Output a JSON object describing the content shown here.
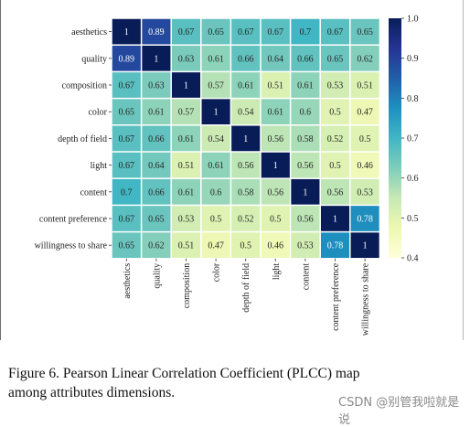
{
  "chart_data": {
    "type": "heatmap",
    "rows": [
      "aesthetics",
      "quality",
      "composition",
      "color",
      "depth of field",
      "light",
      "content",
      "content preference",
      "willingness to share"
    ],
    "columns": [
      "aesthetics",
      "quality",
      "composition",
      "color",
      "depth of field",
      "light",
      "content",
      "content preference",
      "willingness to share"
    ],
    "values": [
      [
        1,
        0.89,
        0.67,
        0.65,
        0.67,
        0.67,
        0.7,
        0.67,
        0.65
      ],
      [
        0.89,
        1,
        0.63,
        0.61,
        0.66,
        0.64,
        0.66,
        0.65,
        0.62
      ],
      [
        0.67,
        0.63,
        1,
        0.57,
        0.61,
        0.51,
        0.61,
        0.53,
        0.51
      ],
      [
        0.65,
        0.61,
        0.57,
        1,
        0.54,
        0.61,
        0.6,
        0.5,
        0.47
      ],
      [
        0.67,
        0.66,
        0.61,
        0.54,
        1,
        0.56,
        0.58,
        0.52,
        0.5
      ],
      [
        0.67,
        0.64,
        0.51,
        0.61,
        0.56,
        1,
        0.56,
        0.5,
        0.46
      ],
      [
        0.7,
        0.66,
        0.61,
        0.6,
        0.58,
        0.56,
        1,
        0.56,
        0.53
      ],
      [
        0.67,
        0.65,
        0.53,
        0.5,
        0.52,
        0.5,
        0.56,
        1,
        0.78
      ],
      [
        0.65,
        0.62,
        0.51,
        0.47,
        0.5,
        0.46,
        0.53,
        0.78,
        1
      ]
    ],
    "colormap": "YlGnBu",
    "colormap_stops": [
      "#ffffd9",
      "#edf8b1",
      "#c7e9b4",
      "#7fcdbb",
      "#41b6c4",
      "#1d91c0",
      "#225ea8",
      "#253494",
      "#081d58"
    ],
    "colorbar": {
      "range": [
        0.4,
        1.0
      ],
      "ticks": [
        1.0,
        0.9,
        0.8,
        0.7,
        0.6,
        0.5,
        0.4
      ],
      "tick_labels": [
        "1.0",
        "0.9",
        "0.8",
        "0.7",
        "0.6",
        "0.5",
        "0.4"
      ]
    },
    "annotate_cells": true,
    "cell_border_color": "#ffffff"
  },
  "caption": {
    "line1": "Figure 6.  Pearson Linear Correlation Coefficient (PLCC) map",
    "line2": "among attributes dimensions."
  },
  "watermark": "CSDN @别管我啦就是说"
}
